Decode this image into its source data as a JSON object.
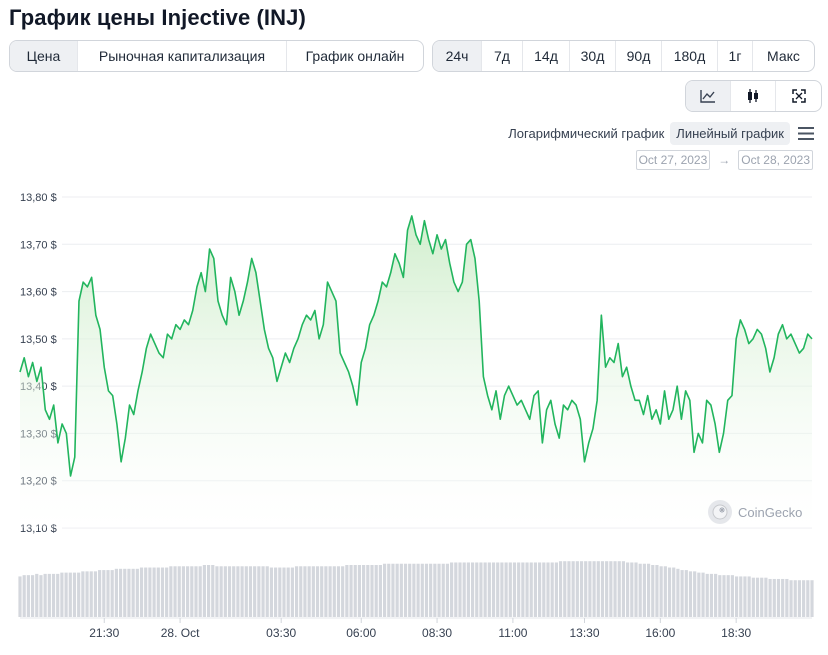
{
  "page": {
    "title": "График цены Injective (INJ)"
  },
  "tabs": [
    {
      "label": "Цена",
      "active": true
    },
    {
      "label": "Рыночная капитализация",
      "active": false
    },
    {
      "label": "График онлайн",
      "active": false
    }
  ],
  "ranges": [
    {
      "label": "24ч",
      "active": true
    },
    {
      "label": "7д",
      "active": false
    },
    {
      "label": "14д",
      "active": false
    },
    {
      "label": "30д",
      "active": false
    },
    {
      "label": "90д",
      "active": false
    },
    {
      "label": "180д",
      "active": false
    },
    {
      "label": "1г",
      "active": false
    },
    {
      "label": "Макс",
      "active": false
    }
  ],
  "views": [
    {
      "icon": "line-chart-icon",
      "active": true
    },
    {
      "icon": "candlestick-icon",
      "active": false
    },
    {
      "icon": "fullscreen-icon",
      "active": false
    }
  ],
  "scale": {
    "log_label": "Логарифмический график",
    "linear_label": "Линейный график",
    "active": "linear"
  },
  "dates": {
    "from": "Oct 27, 2023",
    "to": "Oct 28, 2023",
    "arrow": "→"
  },
  "watermark": {
    "text": "CoinGecko"
  },
  "colors": {
    "line": "#16a34a",
    "line_stroke": "#22b55e",
    "fill_top": "#c8ebc4",
    "volume": "#d4d7dd",
    "grid": "#eceef1"
  },
  "chart_data": {
    "type": "area",
    "title": "",
    "xlabel": "",
    "ylabel": "",
    "ylim": [
      13.1,
      13.8
    ],
    "yticks": [
      13.8,
      13.7,
      13.6,
      13.5,
      13.4,
      13.3,
      13.2,
      13.1
    ],
    "ytick_labels": [
      "13,80 $",
      "13,70 $",
      "13,60 $",
      "13,50 $",
      "13,40 $",
      "13,30 $",
      "13,20 $",
      "13,10 $"
    ],
    "xticks": [
      {
        "label": "21:30",
        "i": 20
      },
      {
        "label": "28. Oct",
        "i": 38
      },
      {
        "label": "03:30",
        "i": 62
      },
      {
        "label": "06:00",
        "i": 81
      },
      {
        "label": "08:30",
        "i": 99
      },
      {
        "label": "11:00",
        "i": 117
      },
      {
        "label": "13:30",
        "i": 134
      },
      {
        "label": "16:00",
        "i": 152
      },
      {
        "label": "18:30",
        "i": 170
      }
    ],
    "series": [
      {
        "values": [
          13.43,
          13.46,
          13.42,
          13.45,
          13.41,
          13.44,
          13.35,
          13.33,
          13.36,
          13.28,
          13.32,
          13.3,
          13.21,
          13.25,
          13.58,
          13.62,
          13.61,
          13.63,
          13.55,
          13.52,
          13.44,
          13.39,
          13.38,
          13.32,
          13.24,
          13.29,
          13.36,
          13.34,
          13.39,
          13.43,
          13.48,
          13.51,
          13.49,
          13.47,
          13.46,
          13.51,
          13.5,
          13.53,
          13.52,
          13.54,
          13.53,
          13.56,
          13.61,
          13.64,
          13.6,
          13.69,
          13.67,
          13.58,
          13.55,
          13.53,
          13.63,
          13.6,
          13.55,
          13.58,
          13.62,
          13.67,
          13.64,
          13.58,
          13.52,
          13.48,
          13.46,
          13.41,
          13.44,
          13.47,
          13.45,
          13.48,
          13.5,
          13.53,
          13.55,
          13.54,
          13.56,
          13.5,
          13.53,
          13.62,
          13.6,
          13.58,
          13.47,
          13.45,
          13.43,
          13.4,
          13.36,
          13.45,
          13.48,
          13.53,
          13.55,
          13.58,
          13.62,
          13.61,
          13.64,
          13.68,
          13.66,
          13.63,
          13.73,
          13.76,
          13.72,
          13.7,
          13.75,
          13.71,
          13.68,
          13.72,
          13.69,
          13.71,
          13.66,
          13.62,
          13.6,
          13.62,
          13.7,
          13.71,
          13.67,
          13.58,
          13.42,
          13.38,
          13.35,
          13.39,
          13.33,
          13.38,
          13.4,
          13.38,
          13.36,
          13.37,
          13.35,
          13.33,
          13.38,
          13.39,
          13.28,
          13.35,
          13.37,
          13.32,
          13.29,
          13.36,
          13.35,
          13.37,
          13.36,
          13.33,
          13.24,
          13.28,
          13.31,
          13.37,
          13.55,
          13.44,
          13.46,
          13.45,
          13.49,
          13.42,
          13.44,
          13.4,
          13.37,
          13.37,
          13.34,
          13.38,
          13.33,
          13.35,
          13.32,
          13.39,
          13.33,
          13.35,
          13.4,
          13.33,
          13.39,
          13.37,
          13.26,
          13.3,
          13.28,
          13.37,
          13.36,
          13.32,
          13.26,
          13.3,
          13.37,
          13.38,
          13.5,
          13.54,
          13.52,
          13.49,
          13.5,
          13.52,
          13.51,
          13.48,
          13.43,
          13.46,
          13.51,
          13.53,
          13.5,
          13.51,
          13.49,
          13.47,
          13.48,
          13.51,
          13.5
        ]
      }
    ],
    "volume": {
      "description": "relative trading volume bars",
      "values": [
        0.32,
        0.33,
        0.33,
        0.33,
        0.34,
        0.33,
        0.34,
        0.34,
        0.34,
        0.34,
        0.35,
        0.35,
        0.35,
        0.35,
        0.35,
        0.36,
        0.36,
        0.36,
        0.36,
        0.37,
        0.37,
        0.37,
        0.37,
        0.38,
        0.38,
        0.38,
        0.38,
        0.38,
        0.38,
        0.39,
        0.39,
        0.39,
        0.39,
        0.39,
        0.39,
        0.39,
        0.4,
        0.4,
        0.4,
        0.4,
        0.4,
        0.4,
        0.4,
        0.4,
        0.41,
        0.41,
        0.41,
        0.4,
        0.4,
        0.4,
        0.4,
        0.4,
        0.4,
        0.4,
        0.4,
        0.4,
        0.4,
        0.4,
        0.4,
        0.4,
        0.39,
        0.39,
        0.39,
        0.39,
        0.39,
        0.39,
        0.4,
        0.4,
        0.4,
        0.4,
        0.4,
        0.4,
        0.4,
        0.4,
        0.4,
        0.4,
        0.4,
        0.4,
        0.41,
        0.41,
        0.41,
        0.41,
        0.41,
        0.41,
        0.41,
        0.41,
        0.41,
        0.42,
        0.42,
        0.42,
        0.42,
        0.42,
        0.42,
        0.42,
        0.42,
        0.42,
        0.42,
        0.42,
        0.42,
        0.42,
        0.42,
        0.42,
        0.42,
        0.43,
        0.43,
        0.43,
        0.43,
        0.43,
        0.43,
        0.43,
        0.43,
        0.43,
        0.43,
        0.43,
        0.43,
        0.43,
        0.43,
        0.43,
        0.43,
        0.43,
        0.43,
        0.43,
        0.43,
        0.43,
        0.43,
        0.43,
        0.43,
        0.43,
        0.43,
        0.44,
        0.44,
        0.44,
        0.44,
        0.44,
        0.44,
        0.44,
        0.44,
        0.44,
        0.44,
        0.44,
        0.44,
        0.44,
        0.44,
        0.44,
        0.44,
        0.43,
        0.43,
        0.43,
        0.42,
        0.42,
        0.42,
        0.41,
        0.41,
        0.4,
        0.4,
        0.39,
        0.39,
        0.38,
        0.37,
        0.37,
        0.36,
        0.36,
        0.35,
        0.35,
        0.34,
        0.34,
        0.34,
        0.33,
        0.33,
        0.33,
        0.33,
        0.32,
        0.32,
        0.32,
        0.32,
        0.31,
        0.31,
        0.31,
        0.31,
        0.3,
        0.3,
        0.3,
        0.3,
        0.3,
        0.29,
        0.29,
        0.29,
        0.29,
        0.29,
        0.29
      ]
    }
  }
}
